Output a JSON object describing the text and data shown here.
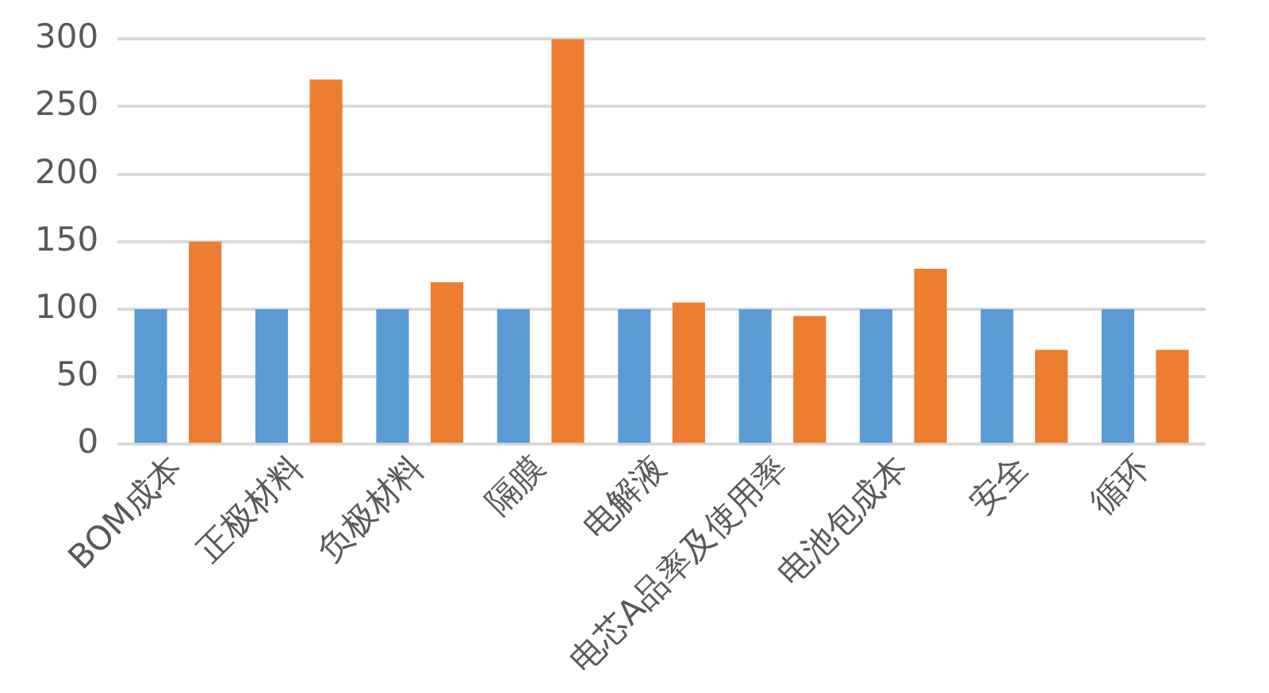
{
  "chart_data": {
    "type": "bar",
    "categories": [
      "BOM成本",
      "正极材料",
      "负极材料",
      "隔膜",
      "电解液",
      "电芯A品率及使用率",
      "电池包成本",
      "安全",
      "循环"
    ],
    "series": [
      {
        "color": "#5b9bd5",
        "values": [
          100,
          100,
          100,
          100,
          100,
          100,
          100,
          100,
          100
        ]
      },
      {
        "color": "#ed7d31",
        "values": [
          150,
          270,
          120,
          300,
          105,
          95,
          130,
          70,
          70
        ]
      }
    ],
    "ylim": [
      0,
      300
    ],
    "yticks": [
      0,
      50,
      100,
      150,
      200,
      250,
      300
    ],
    "grid": "y",
    "legend": false
  }
}
